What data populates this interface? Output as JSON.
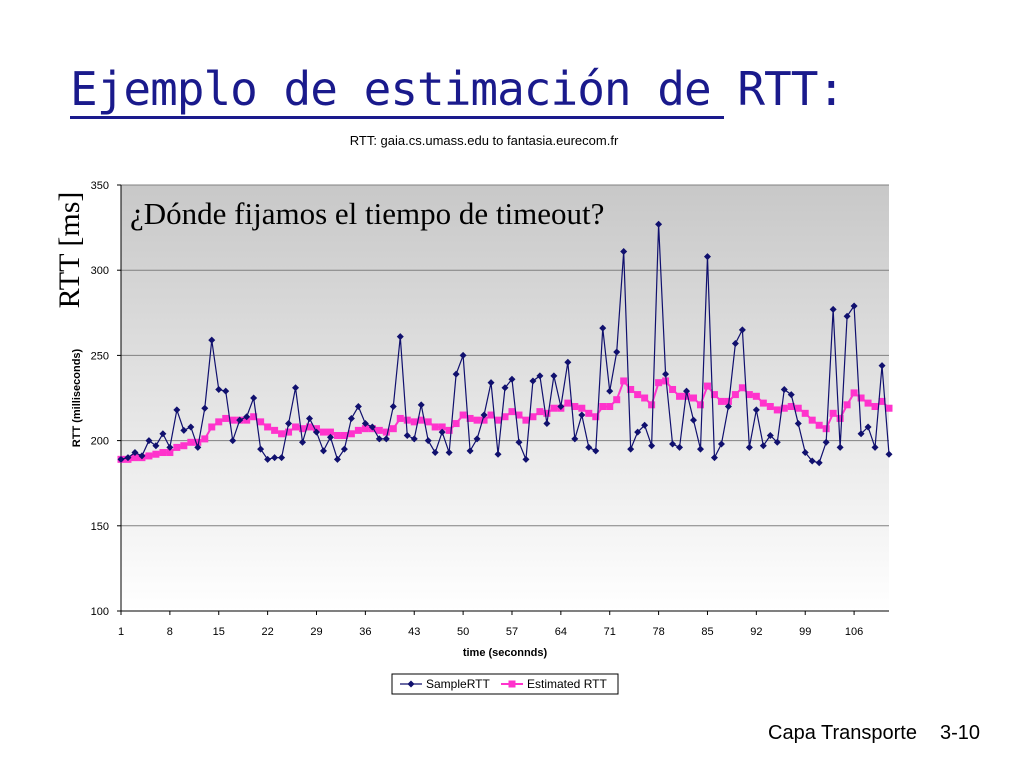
{
  "slide": {
    "title": "Ejemplo de estimación de RTT:",
    "question": "¿Dónde fijamos el tiempo de timeout?",
    "rtt_label": "RTT [ms]",
    "footer": "Capa Transporte",
    "page": "3-10",
    "title_color": "#1a1a8c"
  },
  "chart_data": {
    "type": "line",
    "title": "RTT: gaia.cs.umass.edu to fantasia.eurecom.fr",
    "xlabel": "time (seconnds)",
    "ylabel": "RTT (milliseconds)",
    "ylim": [
      100,
      350
    ],
    "yticks": [
      100,
      150,
      200,
      250,
      300,
      350
    ],
    "xticks": [
      1,
      8,
      15,
      22,
      29,
      36,
      43,
      50,
      57,
      64,
      71,
      78,
      85,
      92,
      99,
      106
    ],
    "xrange": [
      1,
      111
    ],
    "grid": true,
    "legend_position": "bottom-center",
    "x": [
      1,
      2,
      3,
      4,
      5,
      6,
      7,
      8,
      9,
      10,
      11,
      12,
      13,
      14,
      15,
      16,
      17,
      18,
      19,
      20,
      21,
      22,
      23,
      24,
      25,
      26,
      27,
      28,
      29,
      30,
      31,
      32,
      33,
      34,
      35,
      36,
      37,
      38,
      39,
      40,
      41,
      42,
      43,
      44,
      45,
      46,
      47,
      48,
      49,
      50,
      51,
      52,
      53,
      54,
      55,
      56,
      57,
      58,
      59,
      60,
      61,
      62,
      63,
      64,
      65,
      66,
      67,
      68,
      69,
      70,
      71,
      72,
      73,
      74,
      75,
      76,
      77,
      78,
      79,
      80,
      81,
      82,
      83,
      84,
      85,
      86,
      87,
      88,
      89,
      90,
      91,
      92,
      93,
      94,
      95,
      96,
      97,
      98,
      99,
      100,
      101,
      102,
      103,
      104,
      105,
      106,
      107,
      108,
      109,
      110,
      111
    ],
    "series": [
      {
        "name": "SampleRTT",
        "color": "#10106e",
        "marker": "diamond",
        "values": [
          189,
          190,
          193,
          191,
          200,
          197,
          204,
          196,
          218,
          206,
          208,
          196,
          219,
          259,
          230,
          229,
          200,
          212,
          214,
          225,
          195,
          189,
          190,
          190,
          210,
          231,
          199,
          213,
          205,
          194,
          202,
          189,
          195,
          213,
          220,
          210,
          208,
          201,
          201,
          220,
          261,
          203,
          201,
          221,
          200,
          193,
          205,
          193,
          239,
          250,
          194,
          201,
          215,
          234,
          192,
          231,
          236,
          199,
          189,
          235,
          238,
          210,
          238,
          220,
          246,
          201,
          215,
          196,
          194,
          266,
          229,
          252,
          311,
          195,
          205,
          209,
          197,
          327,
          239,
          198,
          196,
          229,
          212,
          195,
          308,
          190,
          198,
          220,
          257,
          265,
          196,
          218,
          197,
          203,
          199,
          230,
          227,
          210,
          193,
          188,
          187,
          199,
          277,
          196,
          273,
          279,
          204,
          208,
          196,
          244,
          192
        ]
      },
      {
        "name": "Estimated RTT",
        "color": "#ff33cc",
        "marker": "square",
        "values": [
          189,
          189,
          190,
          190,
          191,
          192,
          193,
          193,
          196,
          197,
          199,
          199,
          201,
          208,
          211,
          213,
          212,
          212,
          212,
          214,
          211,
          208,
          206,
          204,
          205,
          208,
          207,
          208,
          207,
          205,
          205,
          203,
          203,
          204,
          206,
          207,
          207,
          206,
          205,
          207,
          213,
          212,
          211,
          212,
          211,
          208,
          208,
          206,
          210,
          215,
          213,
          212,
          212,
          215,
          212,
          214,
          217,
          215,
          212,
          214,
          217,
          216,
          219,
          219,
          222,
          220,
          219,
          216,
          214,
          220,
          220,
          224,
          235,
          230,
          227,
          225,
          221,
          234,
          235,
          230,
          226,
          226,
          225,
          221,
          232,
          227,
          223,
          223,
          227,
          231,
          227,
          226,
          222,
          220,
          218,
          219,
          220,
          219,
          216,
          212,
          209,
          207,
          216,
          213,
          221,
          228,
          225,
          222,
          220,
          223,
          219
        ]
      }
    ],
    "plot_bg_top": "#c8c8c8",
    "plot_bg_bottom": "#ffffff",
    "gridline_color": "#808080"
  }
}
